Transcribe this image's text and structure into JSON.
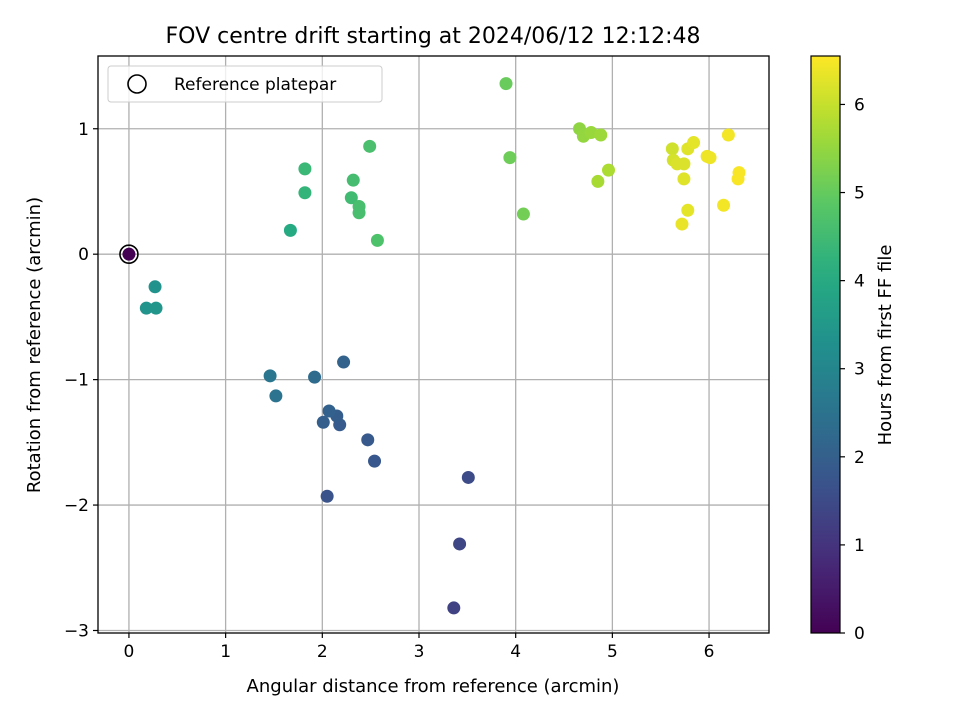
{
  "chart_data": {
    "type": "scatter",
    "title": "FOV centre drift starting at 2024/06/12 12:12:48",
    "xlabel": "Angular distance from reference (arcmin)",
    "ylabel": "Rotation from reference (arcmin)",
    "xlim": [
      -0.32,
      6.62
    ],
    "ylim": [
      -3.02,
      1.58
    ],
    "xticks": [
      0,
      1,
      2,
      3,
      4,
      5,
      6
    ],
    "yticks": [
      -3,
      -2,
      -1,
      0,
      1
    ],
    "xtick_labels": [
      "0",
      "1",
      "2",
      "3",
      "4",
      "5",
      "6"
    ],
    "ytick_labels": [
      "−3",
      "−2",
      "−1",
      "0",
      "1"
    ],
    "grid": true,
    "legend": {
      "position": "top-left",
      "entries": [
        "Reference platepar"
      ]
    },
    "colormap": "viridis",
    "colorbar": {
      "label": "Hours from first FF file",
      "range": [
        0,
        6.55
      ],
      "ticks": [
        0,
        1,
        2,
        3,
        4,
        5,
        6
      ],
      "tick_labels": [
        "0",
        "1",
        "2",
        "3",
        "4",
        "5",
        "6"
      ]
    },
    "reference_point": {
      "name": "Reference platepar",
      "x": 0,
      "y": 0
    },
    "points": [
      {
        "x": 0.0,
        "y": 0.0,
        "c": 0.0
      },
      {
        "x": 3.36,
        "y": -2.82,
        "c": 1.3
      },
      {
        "x": 3.42,
        "y": -2.31,
        "c": 1.4
      },
      {
        "x": 3.51,
        "y": -1.78,
        "c": 1.5
      },
      {
        "x": 2.05,
        "y": -1.93,
        "c": 1.7
      },
      {
        "x": 2.54,
        "y": -1.65,
        "c": 1.8
      },
      {
        "x": 2.47,
        "y": -1.48,
        "c": 1.85
      },
      {
        "x": 2.18,
        "y": -1.36,
        "c": 1.9
      },
      {
        "x": 2.15,
        "y": -1.29,
        "c": 1.95
      },
      {
        "x": 2.01,
        "y": -1.34,
        "c": 2.0
      },
      {
        "x": 2.07,
        "y": -1.25,
        "c": 2.05
      },
      {
        "x": 2.22,
        "y": -0.86,
        "c": 2.1
      },
      {
        "x": 1.92,
        "y": -0.98,
        "c": 2.3
      },
      {
        "x": 1.52,
        "y": -1.13,
        "c": 2.5
      },
      {
        "x": 1.46,
        "y": -0.97,
        "c": 2.6
      },
      {
        "x": 0.27,
        "y": -0.26,
        "c": 3.35
      },
      {
        "x": 0.18,
        "y": -0.43,
        "c": 3.4
      },
      {
        "x": 0.28,
        "y": -0.43,
        "c": 3.45
      },
      {
        "x": 1.67,
        "y": 0.19,
        "c": 4.0
      },
      {
        "x": 1.82,
        "y": 0.49,
        "c": 4.3
      },
      {
        "x": 1.82,
        "y": 0.68,
        "c": 4.4
      },
      {
        "x": 2.3,
        "y": 0.45,
        "c": 4.5
      },
      {
        "x": 2.32,
        "y": 0.59,
        "c": 4.55
      },
      {
        "x": 2.38,
        "y": 0.38,
        "c": 4.6
      },
      {
        "x": 2.38,
        "y": 0.33,
        "c": 4.6
      },
      {
        "x": 2.49,
        "y": 0.86,
        "c": 4.65
      },
      {
        "x": 2.57,
        "y": 0.11,
        "c": 4.7
      },
      {
        "x": 3.9,
        "y": 1.36,
        "c": 5.05
      },
      {
        "x": 3.94,
        "y": 0.77,
        "c": 5.1
      },
      {
        "x": 4.08,
        "y": 0.32,
        "c": 5.15
      },
      {
        "x": 4.66,
        "y": 1.0,
        "c": 5.45
      },
      {
        "x": 4.7,
        "y": 0.94,
        "c": 5.5
      },
      {
        "x": 4.78,
        "y": 0.97,
        "c": 5.55
      },
      {
        "x": 4.88,
        "y": 0.95,
        "c": 5.6
      },
      {
        "x": 4.85,
        "y": 0.58,
        "c": 5.7
      },
      {
        "x": 4.96,
        "y": 0.67,
        "c": 5.75
      },
      {
        "x": 5.62,
        "y": 0.84,
        "c": 6.1
      },
      {
        "x": 5.63,
        "y": 0.75,
        "c": 6.15
      },
      {
        "x": 5.67,
        "y": 0.72,
        "c": 6.2
      },
      {
        "x": 5.74,
        "y": 0.72,
        "c": 6.2
      },
      {
        "x": 5.74,
        "y": 0.6,
        "c": 6.25
      },
      {
        "x": 5.78,
        "y": 0.84,
        "c": 6.25
      },
      {
        "x": 5.84,
        "y": 0.89,
        "c": 6.3
      },
      {
        "x": 5.78,
        "y": 0.35,
        "c": 6.3
      },
      {
        "x": 5.72,
        "y": 0.24,
        "c": 6.35
      },
      {
        "x": 5.98,
        "y": 0.78,
        "c": 6.4
      },
      {
        "x": 6.01,
        "y": 0.77,
        "c": 6.4
      },
      {
        "x": 6.2,
        "y": 0.95,
        "c": 6.45
      },
      {
        "x": 6.15,
        "y": 0.39,
        "c": 6.45
      },
      {
        "x": 6.31,
        "y": 0.65,
        "c": 6.5
      },
      {
        "x": 6.3,
        "y": 0.6,
        "c": 6.5
      }
    ]
  }
}
